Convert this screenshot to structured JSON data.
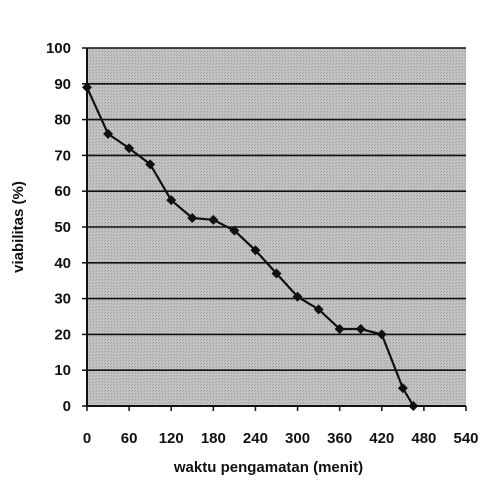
{
  "chart_data": {
    "type": "line",
    "title": "",
    "xlabel": "waktu pengamatan (menit)",
    "ylabel": "viabilitas (%)",
    "xlim": [
      0,
      540
    ],
    "ylim": [
      0,
      100
    ],
    "x_ticks": [
      0,
      60,
      120,
      180,
      240,
      300,
      360,
      420,
      480,
      540
    ],
    "y_ticks": [
      0,
      10,
      20,
      30,
      40,
      50,
      60,
      70,
      80,
      90,
      100
    ],
    "grid": "horizontal",
    "legend": "none",
    "series": [
      {
        "marker": "diamond",
        "x": [
          0,
          30,
          60,
          90,
          120,
          150,
          180,
          210,
          240,
          270,
          300,
          330,
          360,
          390,
          420,
          450,
          465
        ],
        "y": [
          89,
          76,
          72,
          67.5,
          57.5,
          52.5,
          52,
          49,
          43.5,
          37,
          30.5,
          27,
          21.5,
          21.5,
          20,
          5,
          0
        ]
      }
    ],
    "colors": {
      "plot_background": "#bdbdbd",
      "line": "#111111",
      "grid": "#111111"
    }
  }
}
